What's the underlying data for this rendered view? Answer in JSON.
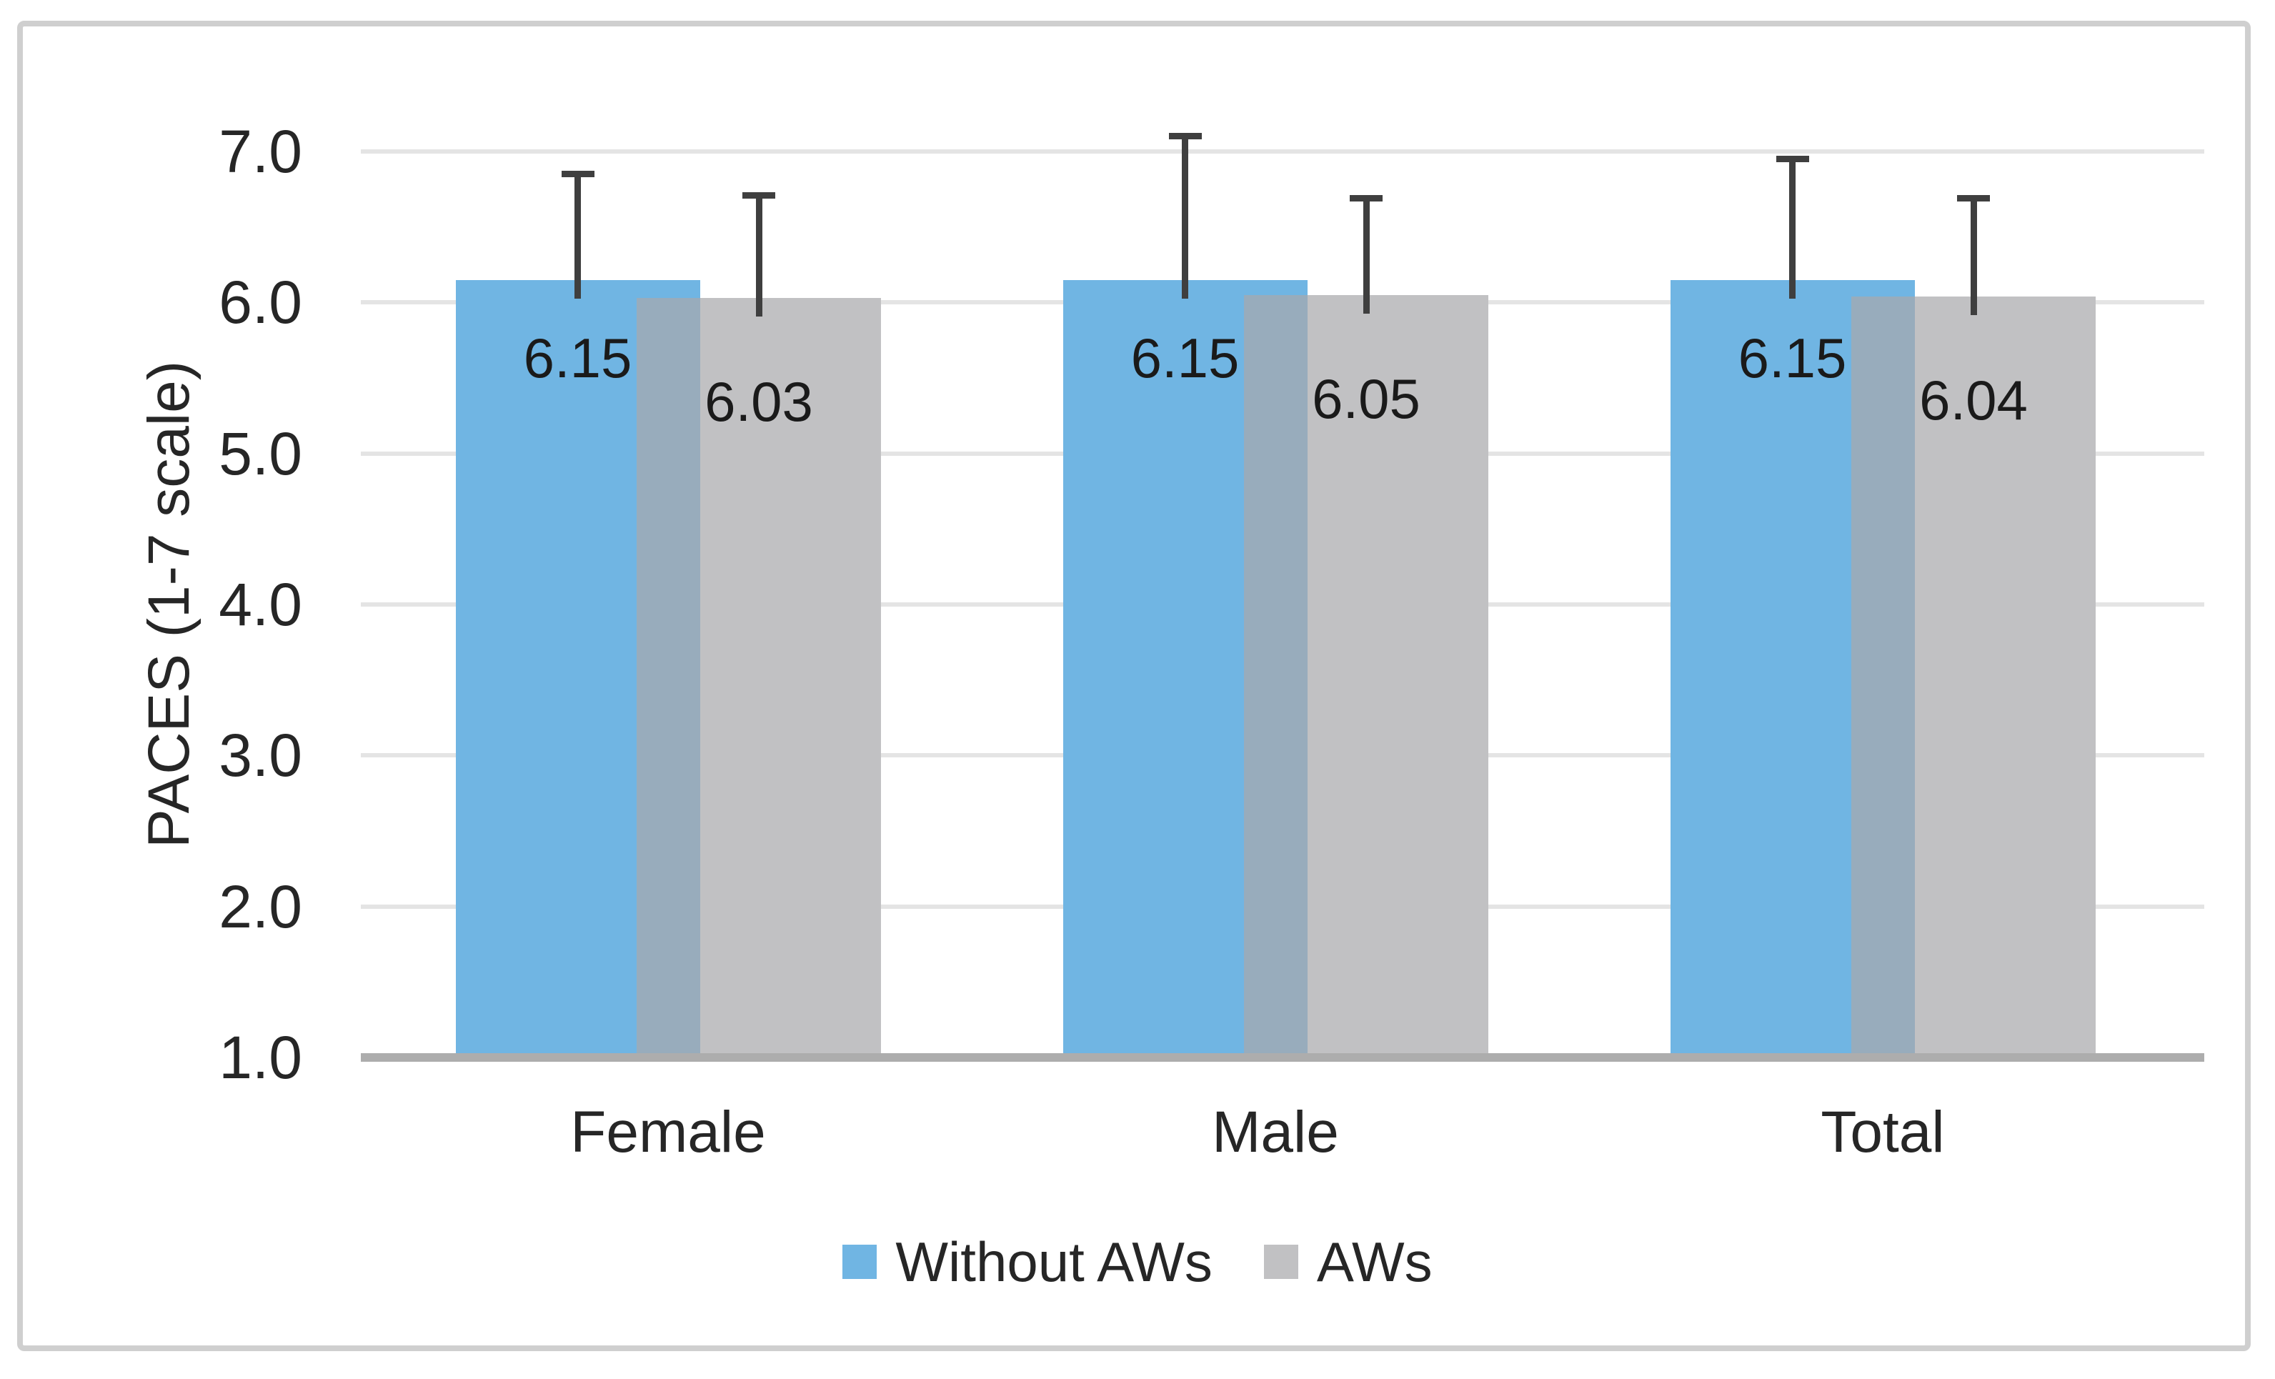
{
  "chart_data": {
    "type": "bar",
    "title": "",
    "xlabel": "",
    "ylabel": "PACES (1-7 scale)",
    "categories": [
      "Female",
      "Male",
      "Total"
    ],
    "series": [
      {
        "name": "Without AWs",
        "color": "#70B5E3",
        "values": [
          6.15,
          6.15,
          6.15
        ],
        "data_labels": [
          "6.15",
          "6.15",
          "6.15"
        ],
        "error_bar_tops": [
          6.85,
          7.1,
          6.95
        ]
      },
      {
        "name": "AWs",
        "color": "#C1C1C3",
        "values": [
          6.03,
          6.05,
          6.04
        ],
        "data_labels": [
          "6.03",
          "6.05",
          "6.04"
        ],
        "error_bar_tops": [
          6.71,
          6.69,
          6.69
        ]
      }
    ],
    "ylim": [
      1.0,
      7.0
    ],
    "yticks": [
      {
        "label": "7.0",
        "value": 7
      },
      {
        "label": "6.0",
        "value": 6
      },
      {
        "label": "5.0",
        "value": 5
      },
      {
        "label": "4.0",
        "value": 4
      },
      {
        "label": "3.0",
        "value": 3
      },
      {
        "label": "2.0",
        "value": 2
      },
      {
        "label": "1.0",
        "value": 1
      }
    ],
    "grid": true,
    "legend_position": "bottom",
    "colors": {
      "series_overlap": "#98ACBC",
      "error_bar": "#3F3F3F",
      "gridline": "#E4E4E4",
      "axis_line": "#ADADAD",
      "text": "#262626",
      "panel_border": "#CFCFCF",
      "background": "#FFFFFF"
    }
  }
}
